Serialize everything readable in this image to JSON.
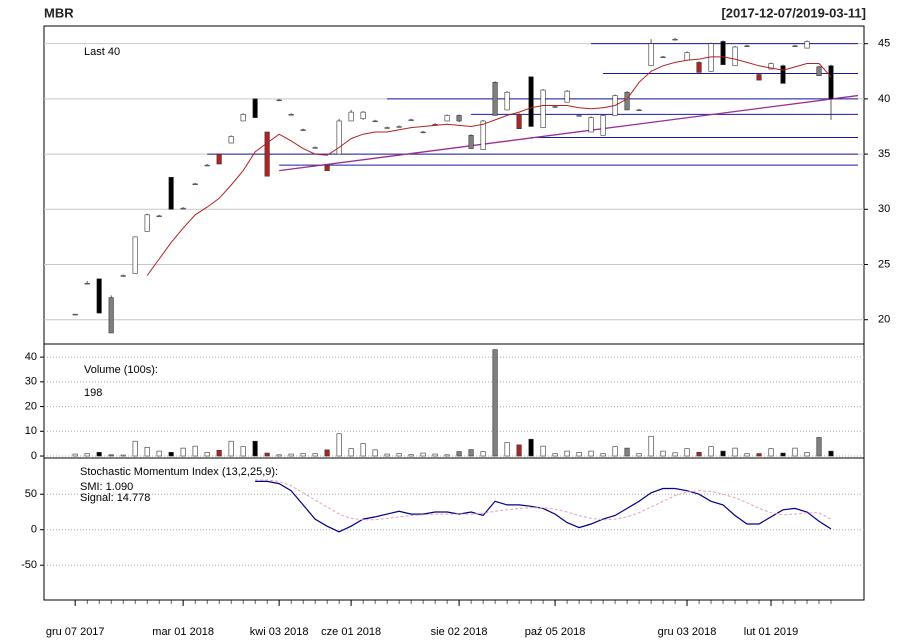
{
  "chart_data": [
    {
      "type": "candlestick",
      "title": "MBR",
      "subtitle": "[2017-12-07/2019-03-11]",
      "annotation": "Last 40",
      "xlim": [
        -2.6,
        65.75
      ],
      "xticks": [
        {
          "value": 0,
          "label": "gru 07 2017"
        },
        {
          "value": 9,
          "label": "mar 01 2018"
        },
        {
          "value": 17,
          "label": "kwi 03 2018"
        },
        {
          "value": 23,
          "label": "cze 01 2018"
        },
        {
          "value": 32,
          "label": "sie 02 2018"
        },
        {
          "value": 40,
          "label": "paź 05 2018"
        },
        {
          "value": 51,
          "label": "gru 03 2018"
        },
        {
          "value": 58,
          "label": "lut 01 2019"
        }
      ],
      "ylim": [
        17.8,
        46.6
      ],
      "yticks": [
        20,
        25,
        30,
        35,
        40,
        45
      ],
      "grid": true,
      "open": [
        20.5,
        23.3,
        23.7,
        22,
        24,
        24.2,
        28,
        29.4,
        30,
        30.1,
        32.3,
        34,
        34.1,
        36,
        38,
        40,
        37,
        39.9,
        38.6,
        37.2,
        35.6,
        33.5,
        35,
        38,
        38.8,
        38,
        37.4,
        37.5,
        38.1,
        37,
        37.7,
        38,
        38.5,
        35.5,
        35.4,
        38.5,
        39,
        38.6,
        42,
        37.4,
        39.3,
        39.7,
        38.5,
        37,
        36.7,
        38.5,
        39,
        39,
        43,
        43.8,
        45.4,
        44.2,
        43.3,
        42.5,
        45.2,
        43,
        44.8,
        42.2,
        43.2,
        43,
        44.8,
        44.6,
        42.9,
        43
      ],
      "close": [
        20.5,
        23.3,
        20.6,
        18.8,
        24,
        27.5,
        29.5,
        29.4,
        32.9,
        30.1,
        32.3,
        34,
        35,
        36.6,
        38.6,
        38.3,
        33,
        39.9,
        38.6,
        37.2,
        35.6,
        34,
        38,
        38.8,
        38.2,
        38,
        37.4,
        37.5,
        38.1,
        37,
        37.7,
        38.5,
        38,
        36.7,
        38,
        41.5,
        40.6,
        37.3,
        37.5,
        40.8,
        39.3,
        40.7,
        38.5,
        38.3,
        38.5,
        40.3,
        40.6,
        39,
        45,
        43.8,
        45.4,
        43.5,
        42.4,
        45,
        43.1,
        44.7,
        44.8,
        41.7,
        42.7,
        41.4,
        44.8,
        45.2,
        42.1,
        40
      ],
      "high": [
        20.5,
        23.5,
        23.7,
        22.2,
        24.1,
        27.5,
        29.6,
        29.5,
        32.9,
        30.2,
        32.4,
        34.1,
        35,
        36.7,
        38.7,
        40,
        37,
        40,
        38.7,
        37.3,
        35.7,
        34,
        38.2,
        39,
        38.9,
        38.1,
        37.5,
        37.6,
        38.2,
        37.1,
        37.8,
        38.6,
        38.6,
        36.8,
        38.1,
        41.6,
        40.7,
        38.7,
        42,
        40.9,
        39.4,
        40.8,
        38.6,
        38.4,
        38.6,
        40.4,
        40.7,
        39.1,
        45.4,
        43.9,
        45.5,
        44.3,
        43.4,
        45.1,
        45.3,
        44.8,
        44.9,
        42.3,
        43.3,
        43.1,
        44.9,
        45.3,
        43,
        43.1
      ],
      "low": [
        20.4,
        23.2,
        20.6,
        18.8,
        23.9,
        24.2,
        28,
        29.3,
        30,
        30,
        32.2,
        33.9,
        34.1,
        36,
        38,
        38.3,
        33,
        39.8,
        38.5,
        37.1,
        35.5,
        33.5,
        35,
        38,
        38.1,
        37.9,
        37.3,
        37.4,
        38,
        36.9,
        37.6,
        38,
        37.9,
        35.5,
        35.4,
        38.5,
        39,
        37.3,
        37.5,
        37.4,
        39.2,
        39.7,
        38.4,
        37,
        36.7,
        38.5,
        39,
        38.9,
        43,
        43.7,
        45.3,
        43.5,
        42.4,
        42.5,
        43.1,
        43,
        44.7,
        41.7,
        42.7,
        41.4,
        44.7,
        44.6,
        42.1,
        38.1
      ],
      "colors": [
        "#ffffff",
        "#ffffff",
        "#000000",
        "#808080",
        "#ffffff",
        "#ffffff",
        "#ffffff",
        "#ffffff",
        "#000000",
        "#ffffff",
        "#ffffff",
        "#ffffff",
        "#b22222",
        "#ffffff",
        "#ffffff",
        "#000000",
        "#b22222",
        "#ffffff",
        "#ffffff",
        "#ffffff",
        "#ffffff",
        "#b22222",
        "#ffffff",
        "#ffffff",
        "#ffffff",
        "#ffffff",
        "#ffffff",
        "#ffffff",
        "#ffffff",
        "#ffffff",
        "#ffffff",
        "#ffffff",
        "#808080",
        "#808080",
        "#ffffff",
        "#808080",
        "#ffffff",
        "#b22222",
        "#000000",
        "#ffffff",
        "#ffffff",
        "#ffffff",
        "#ffffff",
        "#ffffff",
        "#ffffff",
        "#ffffff",
        "#808080",
        "#ffffff",
        "#ffffff",
        "#ffffff",
        "#ffffff",
        "#ffffff",
        "#b22222",
        "#ffffff",
        "#000000",
        "#ffffff",
        "#ffffff",
        "#b22222",
        "#ffffff",
        "#000000",
        "#ffffff",
        "#ffffff",
        "#808080",
        "#000000"
      ],
      "ma": [
        null,
        null,
        null,
        null,
        null,
        null,
        24,
        25.5,
        27,
        28.3,
        29.5,
        30.2,
        31,
        32.2,
        33.5,
        35.2,
        36,
        36.8,
        36.2,
        35.5,
        35,
        34.9,
        35.6,
        36.4,
        36.8,
        37,
        37,
        37.2,
        37.4,
        37.5,
        37.6,
        37.7,
        37.6,
        37.5,
        37.7,
        38.1,
        38.5,
        38.8,
        39.2,
        39.4,
        39.4,
        39.4,
        39.2,
        39.1,
        39.2,
        39.4,
        40,
        41.5,
        42.5,
        43,
        43.3,
        43.5,
        43.6,
        43.8,
        43.8,
        43.6,
        43.3,
        43,
        42.8,
        42.6,
        42.9,
        43.2,
        43.2,
        42
      ],
      "ma_color": "#b22222",
      "levels": [
        {
          "from": 43,
          "value": 45
        },
        {
          "from": 44,
          "value": 42.3
        },
        {
          "from": 26,
          "value": 40
        },
        {
          "from": 33,
          "value": 38.6
        },
        {
          "from": 38,
          "value": 36.5
        },
        {
          "from": 11,
          "value": 35
        },
        {
          "from": 17,
          "value": 34
        }
      ],
      "level_color": "#1a1aa6",
      "trend": {
        "x0": 17,
        "y0": 33.5,
        "x1": 65.25,
        "y1": 40.3,
        "color": "#9b2d8f"
      }
    },
    {
      "type": "bar",
      "label": "Volume (100s):",
      "last_value": 198,
      "ylim": [
        -0.8,
        45.3
      ],
      "yticks": [
        0,
        10,
        20,
        30,
        40
      ],
      "grid": true,
      "values": [
        0.8,
        1,
        1.5,
        0.5,
        0.4,
        6,
        3.5,
        2,
        1.5,
        3.2,
        4,
        1.5,
        2.3,
        6,
        3.8,
        6,
        1.2,
        0.5,
        0.8,
        1,
        1,
        2.5,
        9,
        3,
        5,
        2.5,
        0.8,
        1,
        0.6,
        1.2,
        0.8,
        0.5,
        1.8,
        2.6,
        1.8,
        43,
        5.5,
        4.5,
        6.8,
        4,
        1,
        2,
        1.5,
        2,
        1,
        3.8,
        3.2,
        1,
        8,
        2,
        1.3,
        3,
        1.5,
        3.8,
        2,
        3.2,
        1,
        1,
        3,
        1.2,
        3.2,
        1.5,
        7.5,
        1.98
      ]
    },
    {
      "type": "line",
      "label": "Stochastic Momentum Index (13,2,25,9):",
      "ylim": [
        -99,
        101
      ],
      "yticks": [
        -50,
        0,
        50
      ],
      "grid": true,
      "series": [
        {
          "name": "SMI: 1.090",
          "color": "#00008b",
          "legend_color": "#1f3fbf",
          "values": [
            null,
            null,
            null,
            null,
            null,
            null,
            null,
            null,
            null,
            null,
            null,
            null,
            null,
            null,
            null,
            68,
            68,
            65,
            55,
            35,
            15,
            5,
            -3,
            5,
            15,
            18,
            22,
            26,
            22,
            22,
            25,
            25,
            22,
            25,
            20,
            40,
            35,
            35,
            33,
            30,
            22,
            10,
            3,
            8,
            15,
            20,
            30,
            40,
            52,
            58,
            58,
            55,
            50,
            40,
            35,
            20,
            8,
            8,
            18,
            28,
            30,
            25,
            12,
            1.09
          ]
        },
        {
          "name": "Signal: 14.778",
          "color": "#e8a0b8",
          "legend_color": "#a9c8ec",
          "dashed": true,
          "values": [
            null,
            null,
            null,
            null,
            null,
            null,
            null,
            null,
            null,
            null,
            null,
            null,
            null,
            null,
            null,
            70,
            70,
            68,
            62,
            52,
            42,
            32,
            22,
            16,
            14,
            14,
            16,
            18,
            20,
            21,
            22,
            22,
            22,
            22,
            23,
            26,
            28,
            30,
            31,
            31,
            29,
            25,
            20,
            16,
            14,
            15,
            18,
            24,
            32,
            40,
            48,
            53,
            55,
            54,
            50,
            45,
            38,
            30,
            24,
            21,
            22,
            24,
            24,
            14.778
          ]
        }
      ]
    }
  ]
}
